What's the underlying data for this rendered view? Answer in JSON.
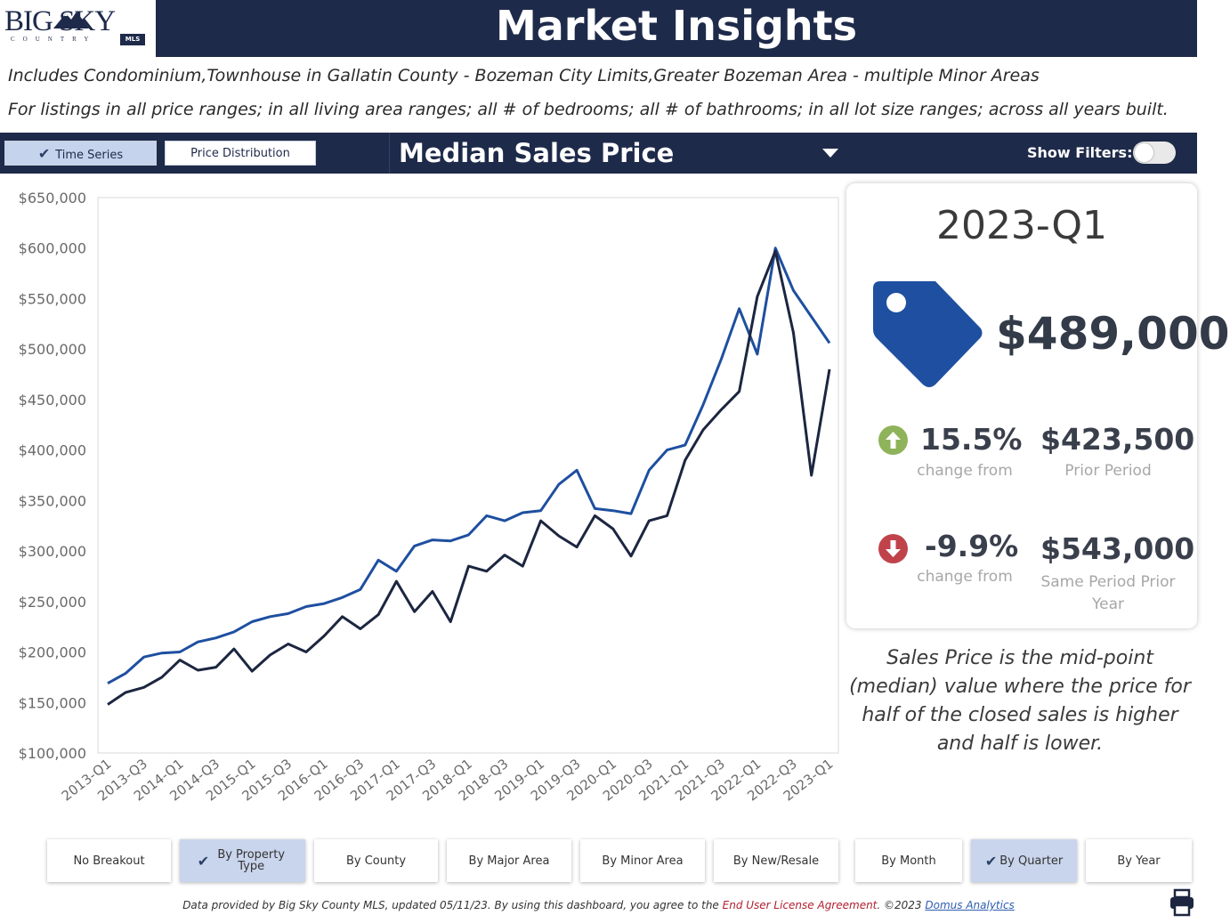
{
  "logo": {
    "text": "BIG SKY",
    "sub": "COUNTRY",
    "badge": "MLS"
  },
  "header": {
    "title": "Market Insights"
  },
  "subtitle": {
    "line1": "Includes Condominium,Townhouse in Gallatin County - Bozeman City Limits,Greater Bozeman Area - multiple Minor Areas",
    "line2": "For listings in all price ranges; in all living area ranges; all # of bedrooms; all # of bathrooms; in all lot size ranges; across all years built."
  },
  "toolbar": {
    "time_series": "Time Series",
    "price_distribution": "Price Distribution",
    "metric": "Median Sales Price",
    "show_filters": "Show Filters:"
  },
  "kpi": {
    "period": "2023-Q1",
    "value": "$489,000",
    "change1": {
      "pct": "15.5%",
      "label": "change from",
      "amount": "$423,500",
      "amount_label": "Prior Period",
      "direction": "up",
      "color": "#8fb35a"
    },
    "change2": {
      "pct": "-9.9%",
      "label": "change from",
      "amount": "$543,000",
      "amount_label": "Same Period Prior Year",
      "direction": "down",
      "color": "#c0434b"
    }
  },
  "explainer": "Sales Price is the mid-point (median) value where the price for half of the closed sales is higher and half is lower.",
  "breakout": {
    "no_breakout": "No Breakout",
    "by_property_type": "By Property Type",
    "by_county": "By County",
    "by_major_area": "By Major Area",
    "by_minor_area": "By Minor Area",
    "by_new_resale": "By New/Resale",
    "by_month": "By Month",
    "by_quarter": "By Quarter",
    "by_year": "By Year"
  },
  "footer": {
    "text1": "Data provided by Big Sky County MLS, updated 05/11/23.  By using this dashboard, you agree to the ",
    "license": "End User License Agreement",
    "text2": ".  ©2023 ",
    "company": "Domus Analytics"
  },
  "chart_data": {
    "type": "line",
    "x_tick_labels": [
      "2013-Q1",
      "2013-Q3",
      "2014-Q1",
      "2014-Q3",
      "2015-Q1",
      "2015-Q3",
      "2016-Q1",
      "2016-Q3",
      "2017-Q1",
      "2017-Q3",
      "2018-Q1",
      "2018-Q3",
      "2019-Q1",
      "2019-Q3",
      "2020-Q1",
      "2020-Q3",
      "2021-Q1",
      "2021-Q3",
      "2022-Q1",
      "2022-Q3",
      "2023-Q1"
    ],
    "y_tick_labels": [
      "$100,000",
      "$150,000",
      "$200,000",
      "$250,000",
      "$300,000",
      "$350,000",
      "$400,000",
      "$450,000",
      "$500,000",
      "$550,000",
      "$600,000",
      "$650,000"
    ],
    "ylim": [
      100000,
      650000
    ],
    "series": [
      {
        "color": "#1e4fa0",
        "values": [
          169000,
          179000,
          195000,
          199000,
          200000,
          210000,
          214000,
          220000,
          230000,
          235000,
          238000,
          245000,
          248000,
          254000,
          262000,
          291000,
          280000,
          305000,
          311000,
          310000,
          316000,
          335000,
          330000,
          338000,
          340000,
          366000,
          380000,
          342000,
          340000,
          337000,
          380000,
          400000,
          405000,
          445000,
          490000,
          540000,
          495000,
          600000,
          558000,
          532000,
          506000
        ]
      },
      {
        "color": "#1c2640",
        "values": [
          148000,
          160000,
          165000,
          175000,
          192000,
          182000,
          185000,
          203000,
          181000,
          197000,
          208000,
          200000,
          216000,
          235000,
          223000,
          237000,
          270000,
          240000,
          260000,
          230000,
          285000,
          280000,
          296000,
          285000,
          330000,
          315000,
          304000,
          335000,
          322000,
          295000,
          330000,
          335000,
          390000,
          420000,
          440000,
          458000,
          552000,
          597000,
          516000,
          375000,
          480000
        ]
      }
    ]
  }
}
